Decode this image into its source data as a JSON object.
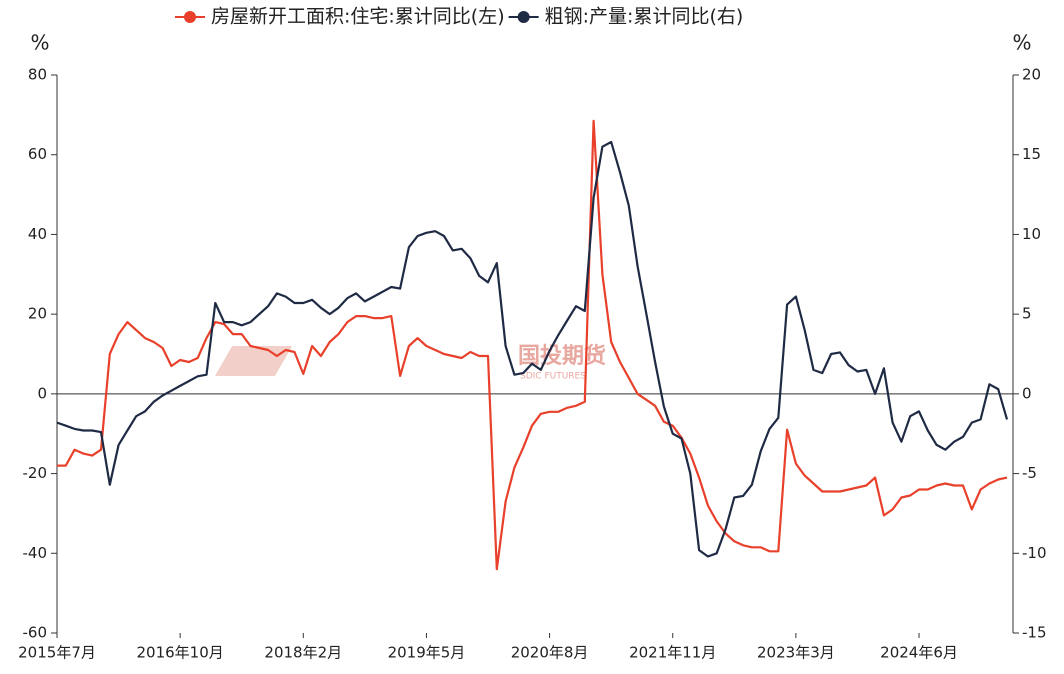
{
  "chart_data": {
    "type": "line",
    "unit_left": "%",
    "unit_right": "%",
    "watermark": "国投期货",
    "watermark_sub": "SDIC FUTURES",
    "categories": [
      "2015年7月",
      null,
      null,
      null,
      null,
      null,
      null,
      null,
      null,
      null,
      null,
      null,
      null,
      null,
      "2016年10月",
      null,
      null,
      null,
      null,
      null,
      null,
      null,
      null,
      null,
      null,
      null,
      null,
      null,
      "2018年2月",
      null,
      null,
      null,
      null,
      null,
      null,
      null,
      null,
      null,
      null,
      null,
      null,
      null,
      "2019年5月",
      null,
      null,
      null,
      null,
      null,
      null,
      null,
      null,
      null,
      null,
      null,
      null,
      null,
      "2020年8月",
      null,
      null,
      null,
      null,
      null,
      null,
      null,
      null,
      null,
      null,
      null,
      null,
      null,
      "2021年11月",
      null,
      null,
      null,
      null,
      null,
      null,
      null,
      null,
      null,
      null,
      null,
      null,
      null,
      "2023年3月",
      null,
      null,
      null,
      null,
      null,
      null,
      null,
      null,
      null,
      null,
      null,
      null,
      null,
      "2024年6月",
      null,
      null,
      null,
      null,
      null,
      null,
      null,
      null,
      null,
      null
    ],
    "series": [
      {
        "name": "房屋新开工面积:住宅:累计同比(左)",
        "color": "#e8402a",
        "values": [
          -18,
          -18,
          -14,
          -15,
          -15.5,
          -14,
          10,
          15,
          18,
          16,
          14,
          13,
          11.5,
          7,
          8.5,
          8,
          9,
          14,
          18,
          17.5,
          15,
          15,
          12,
          11.5,
          11,
          9.5,
          11,
          10.5,
          5,
          12,
          9.5,
          13,
          15,
          18,
          19.5,
          19.5,
          19,
          19,
          19.5,
          4.5,
          12,
          14,
          12,
          11,
          10,
          9.5,
          9,
          10.5,
          9.5,
          9.5,
          -44,
          -27,
          -18.5,
          -13.5,
          -8,
          -5,
          -4.5,
          -4.5,
          -3.5,
          -3,
          -2,
          68.5,
          30,
          13,
          8,
          4,
          0,
          -1.5,
          -3,
          -7,
          -8,
          -11,
          -15,
          -21,
          -28,
          -32,
          -35,
          -37,
          -38,
          -38.5,
          -38.5,
          -39.5,
          -39.5,
          -9,
          -17.5,
          -20.5,
          -22.5,
          -24.5,
          -24.5,
          -24.5,
          -24,
          -23.5,
          -23,
          -21,
          -30.5,
          -29,
          -26,
          -25.5,
          -24,
          -24,
          -23,
          -22.5,
          -23,
          -23,
          -29,
          -24,
          -22.5,
          -21.5,
          -21
        ]
      },
      {
        "name": "粗钢:产量:累计同比(右)",
        "color": "#1f2a44",
        "axis": "y2",
        "values": [
          -1.8,
          -2,
          -2.2,
          -2.3,
          -2.3,
          -2.4,
          -5.7,
          -3.2,
          -2.3,
          -1.4,
          -1.1,
          -0.5,
          -0.1,
          0.2,
          0.5,
          0.8,
          1.1,
          1.2,
          5.7,
          4.5,
          4.5,
          4.3,
          4.5,
          5,
          5.5,
          6.3,
          6.1,
          5.7,
          5.7,
          5.9,
          5.4,
          5,
          5.4,
          6,
          6.3,
          5.8,
          6.1,
          6.4,
          6.7,
          6.6,
          9.2,
          9.9,
          10.1,
          10.2,
          9.9,
          9,
          9.1,
          8.5,
          7.4,
          7,
          8.2,
          3,
          1.2,
          1.3,
          1.9,
          1.5,
          2.7,
          3.7,
          4.6,
          5.5,
          5.2,
          12.3,
          15.5,
          15.8,
          13.9,
          11.8,
          8,
          5,
          2,
          -0.8,
          -2.5,
          -2.8,
          -5,
          -9.8,
          -10.2,
          -10,
          -8.5,
          -6.5,
          -6.4,
          -5.7,
          -3.6,
          -2.2,
          -1.5,
          5.6,
          6.1,
          4,
          1.5,
          1.3,
          2.5,
          2.6,
          1.8,
          1.4,
          1.5,
          0,
          1.6,
          -1.8,
          -3,
          -1.4,
          -1.1,
          -2.3,
          -3.2,
          -3.5,
          -3,
          -2.7,
          -1.8,
          -1.6,
          0.6,
          0.3,
          -1.6
        ]
      }
    ],
    "ylim": [
      -60,
      80
    ],
    "yticks": [
      -60,
      -40,
      -20,
      0,
      20,
      40,
      60,
      80
    ],
    "y2lim": [
      -15,
      20
    ],
    "y2ticks": [
      -15,
      -10,
      -5,
      0,
      5,
      10,
      15,
      20
    ],
    "legend": "top"
  }
}
